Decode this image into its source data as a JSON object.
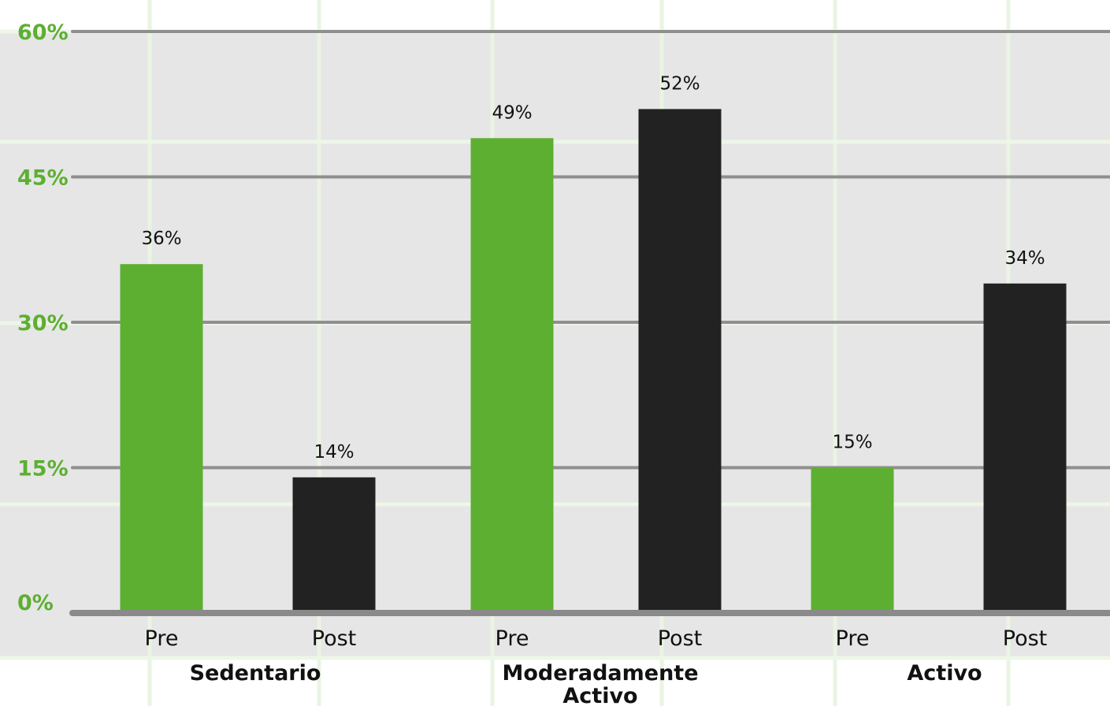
{
  "chart_data": {
    "type": "bar",
    "groups": [
      {
        "label": "Sedentario",
        "bars": [
          {
            "label": "Pre",
            "value": 36
          },
          {
            "label": "Post",
            "value": 14
          }
        ]
      },
      {
        "label": "Moderadamente Activo",
        "bars": [
          {
            "label": "Pre",
            "value": 49
          },
          {
            "label": "Post",
            "value": 52
          }
        ]
      },
      {
        "label": "Activo",
        "bars": [
          {
            "label": "Pre",
            "value": 15
          },
          {
            "label": "Post",
            "value": 34
          }
        ]
      }
    ],
    "value_labels": [
      "36%",
      "14%",
      "49%",
      "52%",
      "15%",
      "34%"
    ],
    "yticks": [
      "0%",
      "15%",
      "30%",
      "45%",
      "60%"
    ],
    "ylim": [
      0,
      60
    ],
    "grid": true,
    "colors": {
      "Pre": "#5daf32",
      "Post": "#222222",
      "tick_text": "#5daf32",
      "plot_bg": "#e6e6e6",
      "gridline": "#8f8f8f"
    }
  }
}
